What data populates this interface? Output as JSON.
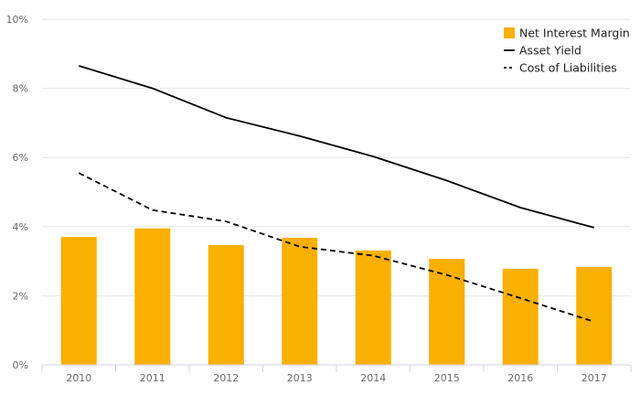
{
  "chart_data": {
    "type": "bar",
    "categories": [
      "2010",
      "2011",
      "2012",
      "2013",
      "2014",
      "2015",
      "2016",
      "2017"
    ],
    "series": [
      {
        "name": "Net Interest Margin",
        "kind": "bar",
        "values": [
          3.7,
          3.95,
          3.47,
          3.68,
          3.31,
          3.07,
          2.78,
          2.83
        ]
      },
      {
        "name": "Asset Yield",
        "kind": "line",
        "style": "solid",
        "values": [
          8.65,
          8.0,
          7.15,
          6.62,
          6.03,
          5.33,
          4.55,
          3.97
        ]
      },
      {
        "name": "Cost of Liabilities",
        "kind": "line",
        "style": "dashed",
        "values": [
          5.55,
          4.48,
          4.15,
          3.42,
          3.16,
          2.6,
          1.93,
          1.25
        ]
      }
    ],
    "y_ticks": [
      "0%",
      "2%",
      "4%",
      "6%",
      "8%",
      "10%"
    ],
    "ylim": [
      0,
      10
    ],
    "grid": true,
    "legend_position": "top-right",
    "colors": {
      "bar": "#f9b000",
      "line": "#000000"
    }
  }
}
